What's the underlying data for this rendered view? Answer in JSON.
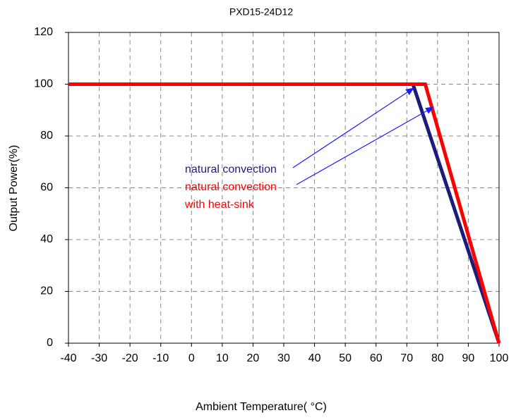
{
  "chart_data": {
    "type": "line",
    "title": "PXD15-24D12",
    "x_label": "Ambient Temperature( °C)",
    "y_label": "Output Power(%)",
    "series": [
      {
        "name": "natural convection",
        "color": "#1c1c7c",
        "x": [
          -40,
          72,
          100
        ],
        "values": [
          100,
          100,
          0
        ]
      },
      {
        "name": "natural convection with heat-sink",
        "color": "#ff0000",
        "x": [
          -40,
          76,
          100
        ],
        "values": [
          100,
          100,
          0
        ]
      }
    ],
    "xlim": [
      -40,
      100
    ],
    "xticks": [
      -40,
      -30,
      -20,
      -10,
      0,
      10,
      20,
      30,
      40,
      50,
      60,
      70,
      80,
      90,
      100
    ],
    "ylim": [
      0,
      120
    ],
    "yticks": [
      0,
      20,
      40,
      60,
      80,
      100,
      120
    ],
    "grid": true
  }
}
